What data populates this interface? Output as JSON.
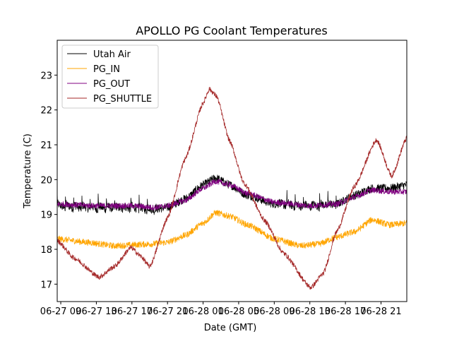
{
  "chart_data": {
    "type": "line",
    "title": "APOLLO PG Coolant Temperatures",
    "xlabel": "Date (GMT)",
    "ylabel": "Temperature (C)",
    "x_unit": "hours since 06-27 09:00 GMT",
    "xlim": [
      -0.4,
      38.9
    ],
    "ylim": [
      16.5,
      24.0
    ],
    "x_ticks": [
      {
        "value": 0,
        "label": "06-27 09"
      },
      {
        "value": 4,
        "label": "06-27 13"
      },
      {
        "value": 8,
        "label": "06-27 17"
      },
      {
        "value": 12,
        "label": "06-27 21"
      },
      {
        "value": 16,
        "label": "06-28 01"
      },
      {
        "value": 20,
        "label": "06-28 05"
      },
      {
        "value": 24,
        "label": "06-28 09"
      },
      {
        "value": 28,
        "label": "06-28 13"
      },
      {
        "value": 32,
        "label": "06-28 17"
      },
      {
        "value": 36,
        "label": "06-28 21"
      }
    ],
    "y_ticks": [
      {
        "value": 17,
        "label": "17"
      },
      {
        "value": 18,
        "label": "18"
      },
      {
        "value": 19,
        "label": "19"
      },
      {
        "value": 20,
        "label": "20"
      },
      {
        "value": 21,
        "label": "21"
      },
      {
        "value": 22,
        "label": "22"
      },
      {
        "value": 23,
        "label": "23"
      }
    ],
    "grid": false,
    "legend_position": "top-left",
    "series": [
      {
        "name": "Utah Air",
        "color": "#000000",
        "noise": 0.12,
        "spikes": [
          [
            -0.4,
            10.8
          ],
          [
            24.5,
            31.0
          ]
        ],
        "x": [
          -0.4,
          4,
          8,
          10.5,
          12,
          14,
          16,
          17.4,
          19,
          21,
          24,
          28,
          31,
          33,
          35,
          37,
          38.9
        ],
        "y": [
          19.25,
          19.2,
          19.2,
          19.15,
          19.2,
          19.45,
          19.85,
          20.05,
          19.85,
          19.55,
          19.3,
          19.25,
          19.3,
          19.55,
          19.75,
          19.75,
          19.85
        ]
      },
      {
        "name": "PG_IN",
        "color": "#FFA500",
        "noise": 0.09,
        "spikes": [],
        "x": [
          -0.4,
          3,
          6,
          10,
          12,
          14,
          16,
          17.4,
          19,
          21,
          24,
          27,
          29,
          31,
          33,
          35,
          37,
          38.9
        ],
        "y": [
          18.3,
          18.2,
          18.1,
          18.15,
          18.2,
          18.4,
          18.75,
          19.05,
          18.95,
          18.7,
          18.3,
          18.1,
          18.15,
          18.35,
          18.5,
          18.85,
          18.7,
          18.75
        ]
      },
      {
        "name": "PG_OUT",
        "color": "#800080",
        "noise": 0.08,
        "spikes": [],
        "x": [
          -0.4,
          4,
          8,
          10.5,
          12,
          14,
          16,
          17.4,
          19,
          21,
          24,
          28,
          31,
          33,
          35,
          37,
          38.9
        ],
        "y": [
          19.3,
          19.25,
          19.25,
          19.2,
          19.25,
          19.4,
          19.75,
          19.95,
          19.85,
          19.6,
          19.35,
          19.25,
          19.3,
          19.5,
          19.7,
          19.65,
          19.65
        ]
      },
      {
        "name": "PG_SHUTTLE",
        "color": "#A52A2A",
        "noise": 0.07,
        "spikes": [],
        "x": [
          -0.4,
          1.5,
          4.3,
          6,
          7.9,
          9.0,
          10.0,
          12,
          14,
          16,
          16.7,
          17.5,
          19,
          20.6,
          23,
          25,
          28.1,
          29.5,
          31,
          33,
          35.5,
          37.2,
          38.9
        ],
        "y": [
          18.25,
          17.75,
          17.2,
          17.5,
          18.05,
          17.8,
          17.5,
          18.9,
          20.6,
          22.2,
          22.6,
          22.4,
          21.1,
          19.9,
          18.8,
          17.9,
          16.9,
          17.3,
          18.5,
          19.8,
          21.15,
          20.1,
          21.2
        ]
      }
    ]
  }
}
